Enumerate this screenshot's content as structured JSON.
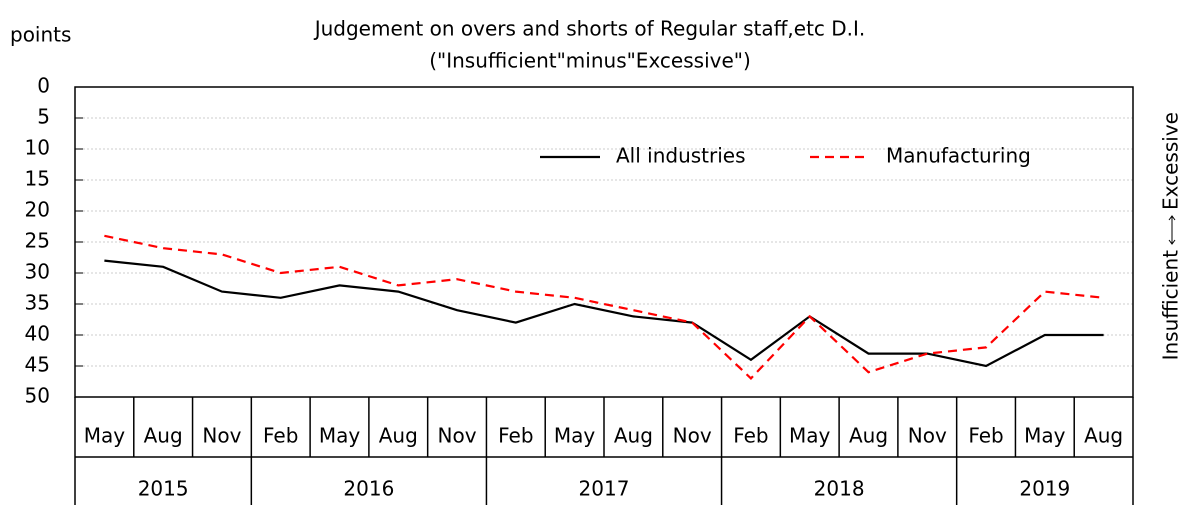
{
  "chart_data": {
    "type": "line",
    "title": "Judgement on overs and shorts of Regular staff,etc D.I.",
    "subtitle": "(\"Insufficient\"minus\"Excessive\")",
    "y_label": "points",
    "right_label_low": "Insufficient",
    "right_label_high": "Excessive",
    "categories": [
      "May",
      "Aug",
      "Nov",
      "Feb",
      "May",
      "Aug",
      "Nov",
      "Feb",
      "May",
      "Aug",
      "Nov",
      "Feb",
      "May",
      "Aug",
      "Nov",
      "Feb",
      "May",
      "Aug"
    ],
    "years": [
      {
        "label": "2015",
        "count": 3
      },
      {
        "label": "2016",
        "count": 4
      },
      {
        "label": "2017",
        "count": 4
      },
      {
        "label": "2018",
        "count": 4
      },
      {
        "label": "2019",
        "count": 3
      }
    ],
    "series": [
      {
        "name": "All industries",
        "color": "#000000",
        "dash": false,
        "values": [
          28,
          29,
          33,
          34,
          32,
          33,
          36,
          38,
          35,
          37,
          38,
          44,
          37,
          43,
          43,
          45,
          40,
          40
        ]
      },
      {
        "name": "Manufacturing",
        "color": "#ff0000",
        "dash": true,
        "values": [
          24,
          26,
          27,
          30,
          29,
          32,
          31,
          33,
          34,
          36,
          38,
          47,
          37,
          46,
          43,
          42,
          33,
          34
        ]
      }
    ],
    "ylim": [
      0,
      50
    ],
    "y_inverted": true,
    "yticks": [
      0,
      5,
      10,
      15,
      20,
      25,
      30,
      35,
      40,
      45,
      50
    ],
    "grid": true
  }
}
